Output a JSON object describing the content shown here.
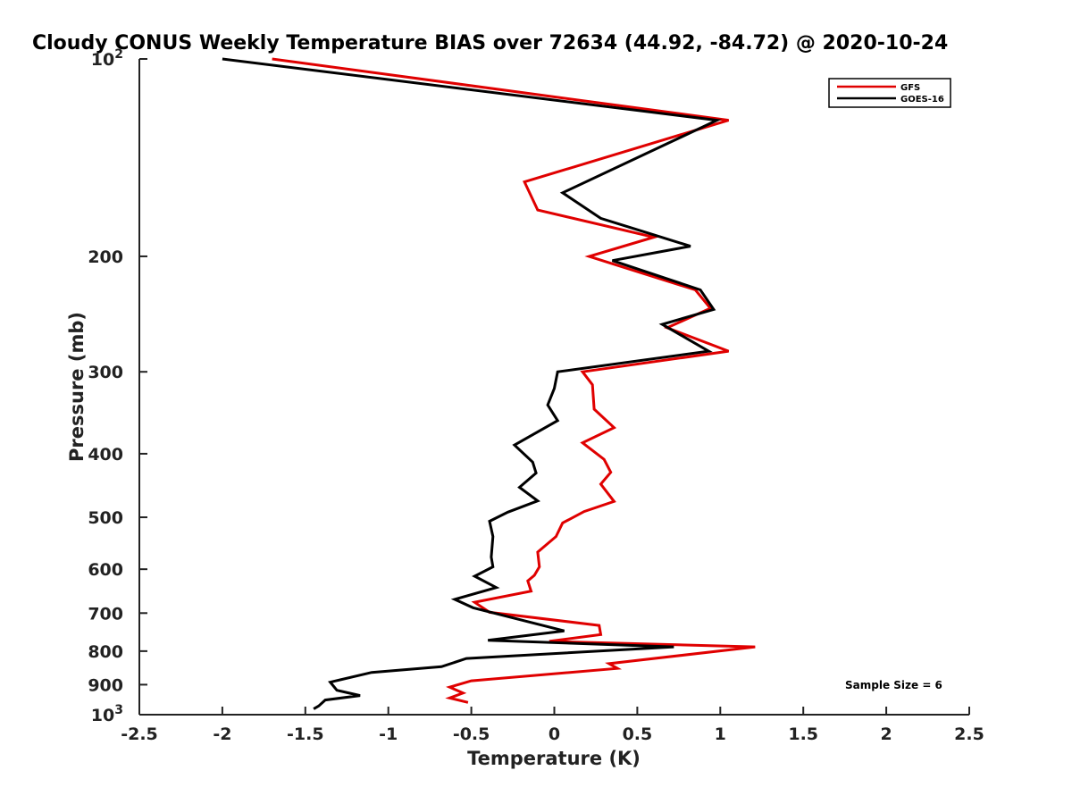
{
  "chart_data": {
    "type": "line",
    "title": "Cloudy CONUS Weekly Temperature BIAS over 72634 (44.92, -84.72) @ 2020-10-24",
    "xlabel": "Temperature (K)",
    "ylabel": "Pressure (mb)",
    "xlim": [
      -2.5,
      2.5
    ],
    "ylim": [
      100,
      1000
    ],
    "yscale": "log",
    "y_reversed": true,
    "grid": false,
    "legend_position": "top-right",
    "x_ticks": [
      {
        "value": -2.5,
        "label": "-2.5"
      },
      {
        "value": -2,
        "label": "-2"
      },
      {
        "value": -1.5,
        "label": "-1.5"
      },
      {
        "value": -1,
        "label": "-1"
      },
      {
        "value": -0.5,
        "label": "-0.5"
      },
      {
        "value": 0,
        "label": "0"
      },
      {
        "value": 0.5,
        "label": "0.5"
      },
      {
        "value": 1,
        "label": "1"
      },
      {
        "value": 1.5,
        "label": "1.5"
      },
      {
        "value": 2,
        "label": "2"
      },
      {
        "value": 2.5,
        "label": "2.5"
      }
    ],
    "y_ticks": [
      {
        "value": 100,
        "base": "10",
        "exp": "2"
      },
      {
        "value": 200,
        "label": "200"
      },
      {
        "value": 300,
        "label": "300"
      },
      {
        "value": 400,
        "label": "400"
      },
      {
        "value": 500,
        "label": "500"
      },
      {
        "value": 600,
        "label": "600"
      },
      {
        "value": 700,
        "label": "700"
      },
      {
        "value": 800,
        "label": "800"
      },
      {
        "value": 900,
        "label": "900"
      },
      {
        "value": 1000,
        "base": "10",
        "exp": "3"
      }
    ],
    "series": [
      {
        "name": "GFS",
        "color": "#e00000",
        "points": [
          [
            -1.7,
            100
          ],
          [
            1.05,
            124
          ],
          [
            -0.18,
            154
          ],
          [
            -0.1,
            170
          ],
          [
            0.6,
            187
          ],
          [
            0.21,
            200
          ],
          [
            0.85,
            225
          ],
          [
            0.94,
            240
          ],
          [
            0.68,
            257
          ],
          [
            1.05,
            279
          ],
          [
            0.17,
            300
          ],
          [
            0.23,
            314
          ],
          [
            0.24,
            342
          ],
          [
            0.36,
            365
          ],
          [
            0.17,
            385
          ],
          [
            0.3,
            408
          ],
          [
            0.34,
            427
          ],
          [
            0.28,
            445
          ],
          [
            0.36,
            473
          ],
          [
            0.18,
            490
          ],
          [
            0.05,
            510
          ],
          [
            0.01,
            535
          ],
          [
            -0.1,
            565
          ],
          [
            -0.09,
            595
          ],
          [
            -0.12,
            613
          ],
          [
            -0.16,
            625
          ],
          [
            -0.14,
            648
          ],
          [
            -0.48,
            674
          ],
          [
            -0.39,
            698
          ],
          [
            0.27,
            731
          ],
          [
            0.28,
            755
          ],
          [
            -0.03,
            773
          ],
          [
            1.21,
            788
          ],
          [
            0.33,
            836
          ],
          [
            0.38,
            850
          ],
          [
            -0.5,
            888
          ],
          [
            -0.63,
            908
          ],
          [
            -0.55,
            927
          ],
          [
            -0.63,
            943
          ],
          [
            -0.52,
            958
          ]
        ]
      },
      {
        "name": "GOES-16",
        "color": "#000000",
        "points": [
          [
            -2.0,
            100
          ],
          [
            0.98,
            124
          ],
          [
            0.05,
            160
          ],
          [
            0.28,
            175
          ],
          [
            0.82,
            193
          ],
          [
            0.35,
            203
          ],
          [
            0.88,
            225
          ],
          [
            0.96,
            241
          ],
          [
            0.65,
            254
          ],
          [
            0.93,
            279
          ],
          [
            0.02,
            300
          ],
          [
            0.0,
            318
          ],
          [
            -0.04,
            337
          ],
          [
            0.02,
            356
          ],
          [
            -0.24,
            388
          ],
          [
            -0.13,
            412
          ],
          [
            -0.11,
            428
          ],
          [
            -0.21,
            450
          ],
          [
            -0.1,
            472
          ],
          [
            -0.28,
            491
          ],
          [
            -0.39,
            507
          ],
          [
            -0.37,
            535
          ],
          [
            -0.38,
            575
          ],
          [
            -0.37,
            595
          ],
          [
            -0.48,
            615
          ],
          [
            -0.35,
            640
          ],
          [
            -0.6,
            667
          ],
          [
            -0.49,
            687
          ],
          [
            0.06,
            745
          ],
          [
            -0.4,
            770
          ],
          [
            0.72,
            788
          ],
          [
            -0.53,
            821
          ],
          [
            -0.68,
            845
          ],
          [
            -1.1,
            862
          ],
          [
            -1.35,
            892
          ],
          [
            -1.31,
            918
          ],
          [
            -1.17,
            935
          ],
          [
            -1.38,
            950
          ],
          [
            -1.42,
            970
          ],
          [
            -1.45,
            980
          ]
        ]
      }
    ],
    "annotation": {
      "text": "Sample Size = 6"
    }
  }
}
